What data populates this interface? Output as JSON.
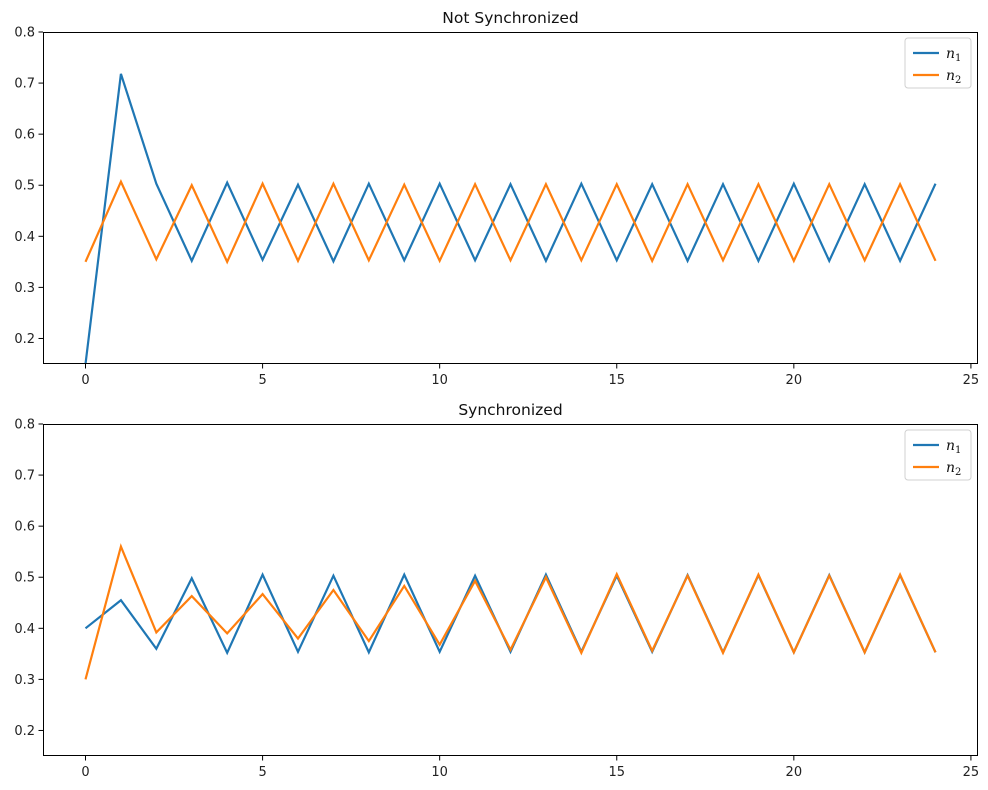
{
  "chart_data": [
    {
      "type": "line",
      "title": "Not Synchronized",
      "xlabel": "",
      "ylabel": "",
      "xlim": [
        -1.2,
        25.2
      ],
      "ylim": [
        0.15,
        0.8
      ],
      "xticks": [
        0,
        5,
        10,
        15,
        20,
        25
      ],
      "yticks": [
        0.2,
        0.3,
        0.4,
        0.5,
        0.6,
        0.7,
        0.8
      ],
      "grid": false,
      "legend_position": "top-right",
      "x": [
        0,
        1,
        2,
        3,
        4,
        5,
        6,
        7,
        8,
        9,
        10,
        11,
        12,
        13,
        14,
        15,
        16,
        17,
        18,
        19,
        20,
        21,
        22,
        23,
        24
      ],
      "series": [
        {
          "name": "n",
          "subscript": "1",
          "color": "#1f77b4",
          "values": [
            0.15,
            0.718,
            0.503,
            0.352,
            0.505,
            0.354,
            0.501,
            0.351,
            0.503,
            0.353,
            0.503,
            0.353,
            0.502,
            0.352,
            0.503,
            0.353,
            0.502,
            0.352,
            0.502,
            0.352,
            0.503,
            0.352,
            0.502,
            0.352,
            0.503
          ]
        },
        {
          "name": "n",
          "subscript": "2",
          "color": "#ff7f0e",
          "values": [
            0.35,
            0.507,
            0.355,
            0.5,
            0.35,
            0.503,
            0.352,
            0.503,
            0.353,
            0.501,
            0.352,
            0.502,
            0.353,
            0.502,
            0.353,
            0.502,
            0.352,
            0.502,
            0.353,
            0.502,
            0.352,
            0.502,
            0.353,
            0.502,
            0.352
          ]
        }
      ]
    },
    {
      "type": "line",
      "title": "Synchronized",
      "xlabel": "",
      "ylabel": "",
      "xlim": [
        -1.2,
        25.2
      ],
      "ylim": [
        0.15,
        0.8
      ],
      "xticks": [
        0,
        5,
        10,
        15,
        20,
        25
      ],
      "yticks": [
        0.2,
        0.3,
        0.4,
        0.5,
        0.6,
        0.7,
        0.8
      ],
      "grid": false,
      "legend_position": "top-right",
      "x": [
        0,
        1,
        2,
        3,
        4,
        5,
        6,
        7,
        8,
        9,
        10,
        11,
        12,
        13,
        14,
        15,
        16,
        17,
        18,
        19,
        20,
        21,
        22,
        23,
        24
      ],
      "series": [
        {
          "name": "n",
          "subscript": "1",
          "color": "#1f77b4",
          "values": [
            0.4,
            0.455,
            0.36,
            0.498,
            0.352,
            0.505,
            0.354,
            0.503,
            0.353,
            0.505,
            0.354,
            0.503,
            0.354,
            0.505,
            0.354,
            0.503,
            0.354,
            0.504,
            0.353,
            0.504,
            0.353,
            0.504,
            0.353,
            0.504,
            0.353
          ]
        },
        {
          "name": "n",
          "subscript": "2",
          "color": "#ff7f0e",
          "values": [
            0.3,
            0.56,
            0.392,
            0.463,
            0.39,
            0.467,
            0.38,
            0.475,
            0.375,
            0.483,
            0.368,
            0.493,
            0.358,
            0.5,
            0.352,
            0.506,
            0.356,
            0.503,
            0.352,
            0.505,
            0.353,
            0.503,
            0.353,
            0.505,
            0.353
          ]
        }
      ]
    }
  ]
}
